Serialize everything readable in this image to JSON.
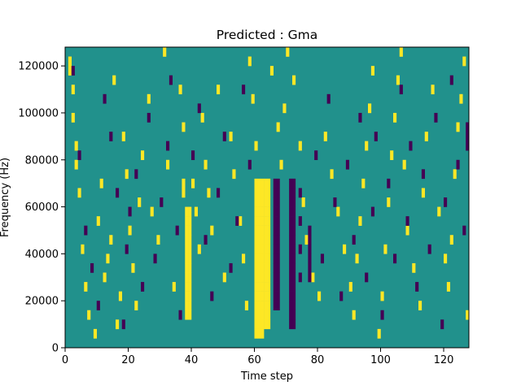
{
  "chart_data": {
    "type": "heatmap",
    "title": "Predicted : Gma",
    "xlabel": "Time step",
    "ylabel": "Frequency (Hz)",
    "xlim": [
      0,
      128
    ],
    "ylim": [
      0,
      128000
    ],
    "x_ticks": [
      0,
      20,
      40,
      60,
      80,
      100,
      120
    ],
    "y_ticks": [
      0,
      20000,
      40000,
      60000,
      80000,
      100000,
      120000
    ],
    "x_tick_labels": [
      "0",
      "20",
      "40",
      "60",
      "80",
      "100",
      "120"
    ],
    "y_tick_labels": [
      "0",
      "20000",
      "40000",
      "60000",
      "80000",
      "100000",
      "120000"
    ],
    "grid": false,
    "legend": "none",
    "colormap": "viridis",
    "background_value": 0.5,
    "colors": {
      "low": "#440154",
      "mid": "#21918c",
      "high": "#fde725",
      "axis": "#000000",
      "background": "#ffffff"
    },
    "bins": 32,
    "bin_height": 4000,
    "cells_high": [
      [
        1,
        30
      ],
      [
        1,
        29
      ],
      [
        2,
        27
      ],
      [
        2,
        24
      ],
      [
        3,
        21
      ],
      [
        3,
        19
      ],
      [
        4,
        16
      ],
      [
        5,
        10
      ],
      [
        6,
        6
      ],
      [
        7,
        3
      ],
      [
        9,
        1
      ],
      [
        10,
        13
      ],
      [
        11,
        17
      ],
      [
        12,
        7
      ],
      [
        13,
        9
      ],
      [
        14,
        11
      ],
      [
        15,
        28
      ],
      [
        16,
        2
      ],
      [
        17,
        5
      ],
      [
        18,
        22
      ],
      [
        19,
        18
      ],
      [
        20,
        12
      ],
      [
        21,
        8
      ],
      [
        22,
        4
      ],
      [
        23,
        15
      ],
      [
        24,
        20
      ],
      [
        26,
        26
      ],
      [
        27,
        14
      ],
      [
        29,
        11
      ],
      [
        31,
        31
      ],
      [
        32,
        19
      ],
      [
        34,
        6
      ],
      [
        36,
        27
      ],
      [
        37,
        23
      ],
      [
        37,
        17
      ],
      [
        37,
        16
      ],
      [
        38,
        14
      ],
      [
        38,
        13
      ],
      [
        38,
        12
      ],
      [
        38,
        11
      ],
      [
        38,
        10
      ],
      [
        38,
        9
      ],
      [
        38,
        8
      ],
      [
        38,
        7
      ],
      [
        38,
        6
      ],
      [
        38,
        5
      ],
      [
        38,
        4
      ],
      [
        38,
        3
      ],
      [
        39,
        14
      ],
      [
        39,
        13
      ],
      [
        39,
        12
      ],
      [
        39,
        11
      ],
      [
        39,
        10
      ],
      [
        39,
        9
      ],
      [
        39,
        8
      ],
      [
        39,
        7
      ],
      [
        39,
        6
      ],
      [
        39,
        5
      ],
      [
        39,
        4
      ],
      [
        39,
        3
      ],
      [
        40,
        17
      ],
      [
        41,
        14
      ],
      [
        42,
        10
      ],
      [
        43,
        24
      ],
      [
        44,
        19
      ],
      [
        45,
        16
      ],
      [
        46,
        12
      ],
      [
        48,
        27
      ],
      [
        50,
        7
      ],
      [
        52,
        22
      ],
      [
        53,
        18
      ],
      [
        55,
        13
      ],
      [
        56,
        9
      ],
      [
        57,
        4
      ],
      [
        58,
        30
      ],
      [
        59,
        26
      ],
      [
        60,
        21
      ],
      [
        60,
        17
      ],
      [
        61,
        17
      ],
      [
        61,
        16
      ],
      [
        61,
        15
      ],
      [
        61,
        14
      ],
      [
        61,
        13
      ],
      [
        61,
        12
      ],
      [
        61,
        11
      ],
      [
        61,
        10
      ],
      [
        61,
        9
      ],
      [
        61,
        8
      ],
      [
        61,
        7
      ],
      [
        61,
        6
      ],
      [
        61,
        5
      ],
      [
        61,
        4
      ],
      [
        61,
        3
      ],
      [
        61,
        2
      ],
      [
        61,
        1
      ],
      [
        62,
        17
      ],
      [
        62,
        16
      ],
      [
        62,
        15
      ],
      [
        62,
        14
      ],
      [
        62,
        13
      ],
      [
        62,
        12
      ],
      [
        62,
        11
      ],
      [
        62,
        10
      ],
      [
        62,
        9
      ],
      [
        62,
        8
      ],
      [
        62,
        7
      ],
      [
        62,
        6
      ],
      [
        62,
        5
      ],
      [
        62,
        4
      ],
      [
        62,
        3
      ],
      [
        62,
        2
      ],
      [
        62,
        1
      ],
      [
        63,
        17
      ],
      [
        63,
        16
      ],
      [
        63,
        15
      ],
      [
        63,
        14
      ],
      [
        63,
        13
      ],
      [
        63,
        12
      ],
      [
        63,
        11
      ],
      [
        63,
        10
      ],
      [
        63,
        9
      ],
      [
        63,
        8
      ],
      [
        63,
        7
      ],
      [
        63,
        6
      ],
      [
        63,
        5
      ],
      [
        63,
        4
      ],
      [
        63,
        3
      ],
      [
        63,
        2
      ],
      [
        64,
        17
      ],
      [
        64,
        16
      ],
      [
        64,
        15
      ],
      [
        64,
        14
      ],
      [
        64,
        13
      ],
      [
        64,
        12
      ],
      [
        64,
        11
      ],
      [
        64,
        10
      ],
      [
        64,
        9
      ],
      [
        64,
        8
      ],
      [
        64,
        7
      ],
      [
        64,
        6
      ],
      [
        64,
        5
      ],
      [
        64,
        4
      ],
      [
        64,
        3
      ],
      [
        64,
        2
      ],
      [
        60,
        16
      ],
      [
        60,
        15
      ],
      [
        60,
        14
      ],
      [
        60,
        13
      ],
      [
        60,
        12
      ],
      [
        60,
        11
      ],
      [
        60,
        10
      ],
      [
        60,
        9
      ],
      [
        60,
        8
      ],
      [
        60,
        7
      ],
      [
        60,
        6
      ],
      [
        60,
        5
      ],
      [
        60,
        4
      ],
      [
        60,
        3
      ],
      [
        60,
        2
      ],
      [
        60,
        1
      ],
      [
        65,
        29
      ],
      [
        67,
        23
      ],
      [
        68,
        19
      ],
      [
        69,
        25
      ],
      [
        70,
        31
      ],
      [
        72,
        28
      ],
      [
        74,
        21
      ],
      [
        75,
        15
      ],
      [
        76,
        11
      ],
      [
        78,
        7
      ],
      [
        80,
        5
      ],
      [
        82,
        22
      ],
      [
        84,
        18
      ],
      [
        86,
        14
      ],
      [
        88,
        10
      ],
      [
        90,
        6
      ],
      [
        91,
        3
      ],
      [
        92,
        9
      ],
      [
        93,
        13
      ],
      [
        94,
        17
      ],
      [
        95,
        21
      ],
      [
        96,
        25
      ],
      [
        97,
        29
      ],
      [
        99,
        1
      ],
      [
        100,
        5
      ],
      [
        101,
        10
      ],
      [
        102,
        15
      ],
      [
        103,
        20
      ],
      [
        104,
        24
      ],
      [
        105,
        28
      ],
      [
        106,
        31
      ],
      [
        107,
        19
      ],
      [
        108,
        12
      ],
      [
        110,
        8
      ],
      [
        112,
        4
      ],
      [
        113,
        16
      ],
      [
        114,
        22
      ],
      [
        116,
        27
      ],
      [
        118,
        14
      ],
      [
        120,
        9
      ],
      [
        121,
        6
      ],
      [
        122,
        11
      ],
      [
        123,
        18
      ],
      [
        124,
        23
      ],
      [
        125,
        26
      ],
      [
        126,
        30
      ],
      [
        127,
        3
      ]
    ],
    "cells_low": [
      [
        2,
        29
      ],
      [
        4,
        20
      ],
      [
        6,
        12
      ],
      [
        8,
        8
      ],
      [
        10,
        4
      ],
      [
        12,
        26
      ],
      [
        14,
        22
      ],
      [
        16,
        16
      ],
      [
        18,
        2
      ],
      [
        19,
        10
      ],
      [
        20,
        14
      ],
      [
        22,
        18
      ],
      [
        24,
        6
      ],
      [
        26,
        24
      ],
      [
        28,
        9
      ],
      [
        30,
        15
      ],
      [
        32,
        21
      ],
      [
        33,
        28
      ],
      [
        35,
        12
      ],
      [
        36,
        3
      ],
      [
        40,
        20
      ],
      [
        42,
        25
      ],
      [
        44,
        11
      ],
      [
        46,
        5
      ],
      [
        48,
        16
      ],
      [
        50,
        22
      ],
      [
        52,
        8
      ],
      [
        54,
        13
      ],
      [
        56,
        27
      ],
      [
        58,
        19
      ],
      [
        66,
        17
      ],
      [
        66,
        16
      ],
      [
        66,
        15
      ],
      [
        66,
        14
      ],
      [
        66,
        13
      ],
      [
        66,
        12
      ],
      [
        66,
        11
      ],
      [
        66,
        10
      ],
      [
        66,
        9
      ],
      [
        66,
        8
      ],
      [
        66,
        7
      ],
      [
        66,
        6
      ],
      [
        66,
        5
      ],
      [
        66,
        4
      ],
      [
        67,
        17
      ],
      [
        67,
        16
      ],
      [
        67,
        15
      ],
      [
        67,
        14
      ],
      [
        67,
        13
      ],
      [
        67,
        12
      ],
      [
        67,
        11
      ],
      [
        67,
        10
      ],
      [
        67,
        9
      ],
      [
        67,
        8
      ],
      [
        67,
        7
      ],
      [
        67,
        6
      ],
      [
        67,
        5
      ],
      [
        67,
        4
      ],
      [
        71,
        17
      ],
      [
        71,
        16
      ],
      [
        71,
        15
      ],
      [
        71,
        14
      ],
      [
        71,
        13
      ],
      [
        71,
        12
      ],
      [
        71,
        11
      ],
      [
        71,
        10
      ],
      [
        71,
        9
      ],
      [
        71,
        8
      ],
      [
        71,
        7
      ],
      [
        71,
        6
      ],
      [
        71,
        5
      ],
      [
        71,
        4
      ],
      [
        71,
        3
      ],
      [
        71,
        2
      ],
      [
        72,
        17
      ],
      [
        72,
        16
      ],
      [
        72,
        15
      ],
      [
        72,
        14
      ],
      [
        72,
        13
      ],
      [
        72,
        12
      ],
      [
        72,
        11
      ],
      [
        72,
        10
      ],
      [
        72,
        9
      ],
      [
        72,
        8
      ],
      [
        72,
        7
      ],
      [
        72,
        6
      ],
      [
        72,
        5
      ],
      [
        72,
        4
      ],
      [
        72,
        3
      ],
      [
        72,
        2
      ],
      [
        74,
        16
      ],
      [
        74,
        13
      ],
      [
        74,
        10
      ],
      [
        74,
        7
      ],
      [
        77,
        12
      ],
      [
        77,
        11
      ],
      [
        77,
        10
      ],
      [
        77,
        9
      ],
      [
        77,
        8
      ],
      [
        77,
        7
      ],
      [
        79,
        20
      ],
      [
        81,
        9
      ],
      [
        83,
        26
      ],
      [
        85,
        15
      ],
      [
        87,
        5
      ],
      [
        89,
        19
      ],
      [
        91,
        11
      ],
      [
        93,
        24
      ],
      [
        95,
        7
      ],
      [
        97,
        14
      ],
      [
        98,
        22
      ],
      [
        100,
        3
      ],
      [
        102,
        17
      ],
      [
        104,
        9
      ],
      [
        106,
        27
      ],
      [
        108,
        13
      ],
      [
        109,
        21
      ],
      [
        111,
        6
      ],
      [
        113,
        18
      ],
      [
        115,
        10
      ],
      [
        117,
        24
      ],
      [
        119,
        2
      ],
      [
        120,
        15
      ],
      [
        122,
        28
      ],
      [
        124,
        19
      ],
      [
        126,
        12
      ],
      [
        127,
        21
      ],
      [
        127,
        22
      ],
      [
        127,
        23
      ]
    ]
  }
}
